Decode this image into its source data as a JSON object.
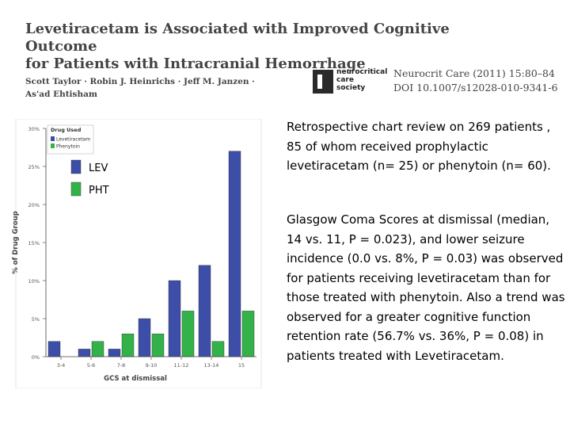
{
  "header": {
    "title_line1": "Levetiracetam is Associated with Improved Cognitive Outcome",
    "title_line2": "for Patients with Intracranial Hemorrhage",
    "authors_line1": "Scott Taylor · Robin J. Heinrichs · Jeff M. Janzen ·",
    "authors_line2": "As'ad Ehtisham"
  },
  "journal": {
    "logo_line1": "neurocritical",
    "logo_line2": "care",
    "logo_line3": "society",
    "citation_line1": "Neurocrit Care (2011) 15:80–84",
    "citation_line2": "DOI 10.1007/s12028-010-9341-6"
  },
  "text": {
    "paragraph1": "Retrospective chart review on 269 patients , 85 of whom received prophylactic levetiracetam (n= 25) or phenytoin (n= 60).",
    "paragraph2": "Glasgow Coma Scores at dismissal (median, 14 vs. 11, P = 0.023), and lower seizure incidence (0.0 vs. 8%, P = 0.03) was observed for patients receiving levetiracetam than for those treated with phenytoin. Also a trend was observed for a greater cognitive function retention rate (56.7% vs. 36%, P = 0.08) in patients treated with Levetiracetam."
  },
  "chart_data": {
    "type": "bar",
    "categories": [
      "3-4",
      "5-6",
      "7-8",
      "9-10",
      "11-12",
      "13-14",
      "15"
    ],
    "series": [
      {
        "name": "Levetiracetam",
        "short_label": "LEV",
        "color": "#3d4ea8",
        "values": [
          2,
          1,
          1,
          5,
          10,
          12,
          27
        ]
      },
      {
        "name": "Phenytoin",
        "short_label": "PHT",
        "color": "#33b24a",
        "values": [
          0,
          2,
          3,
          3,
          6,
          2,
          6
        ]
      }
    ],
    "legend_title": "Drug Used",
    "xlabel": "GCS at dismissal",
    "ylabel": "% of Drug Group",
    "y_ticks": [
      "0%",
      "5%",
      "10%",
      "15%",
      "20%",
      "25%",
      "30%"
    ],
    "ylim": [
      0,
      30
    ],
    "grid": false,
    "legend_position": "top-left"
  }
}
